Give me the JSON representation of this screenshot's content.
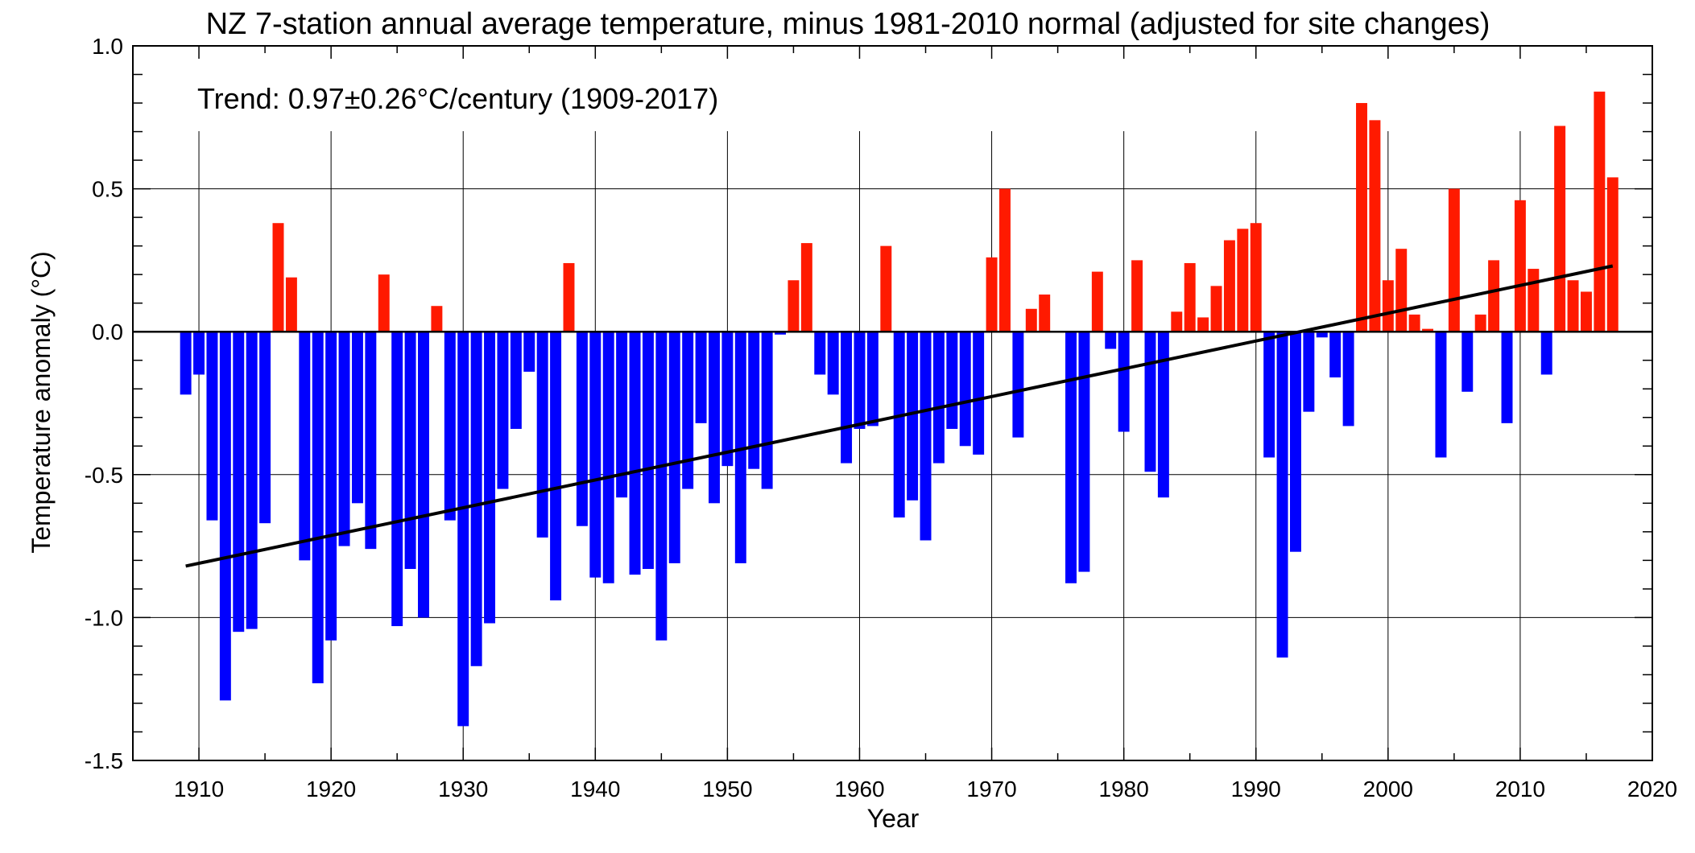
{
  "chart_data": {
    "type": "bar",
    "title": "NZ 7-station annual average temperature, minus 1981-2010 normal (adjusted for site changes)",
    "xlabel": "Year",
    "ylabel": "Temperature anomaly (°C)",
    "xlim": [
      1905,
      2020
    ],
    "ylim": [
      -1.5,
      1.0
    ],
    "x_ticks": [
      1910,
      1920,
      1930,
      1940,
      1950,
      1960,
      1970,
      1980,
      1990,
      2000,
      2010,
      2020
    ],
    "y_ticks": [
      1.0,
      0.5,
      0.0,
      -0.5,
      -1.0,
      -1.5
    ],
    "y_tick_labels": [
      "1.0",
      "0.5",
      "0.0",
      "-0.5",
      "-1.0",
      "-1.5"
    ],
    "grid": true,
    "annotation": "Trend: 0.97±0.26°C/century (1909-2017)",
    "trend": {
      "x": [
        1909,
        2017
      ],
      "y": [
        -0.82,
        0.23
      ],
      "color": "#000000"
    },
    "colors": {
      "positive": "#ff1a00",
      "negative": "#0000ff",
      "grid": "#000000"
    },
    "years": [
      1909,
      1910,
      1911,
      1912,
      1913,
      1914,
      1915,
      1916,
      1917,
      1918,
      1919,
      1920,
      1921,
      1922,
      1923,
      1924,
      1925,
      1926,
      1927,
      1928,
      1929,
      1930,
      1931,
      1932,
      1933,
      1934,
      1935,
      1936,
      1937,
      1938,
      1939,
      1940,
      1941,
      1942,
      1943,
      1944,
      1945,
      1946,
      1947,
      1948,
      1949,
      1950,
      1951,
      1952,
      1953,
      1954,
      1955,
      1956,
      1957,
      1958,
      1959,
      1960,
      1961,
      1962,
      1963,
      1964,
      1965,
      1966,
      1967,
      1968,
      1969,
      1970,
      1971,
      1972,
      1973,
      1974,
      1975,
      1976,
      1977,
      1978,
      1979,
      1980,
      1981,
      1982,
      1983,
      1984,
      1985,
      1986,
      1987,
      1988,
      1989,
      1990,
      1991,
      1992,
      1993,
      1994,
      1995,
      1996,
      1997,
      1998,
      1999,
      2000,
      2001,
      2002,
      2003,
      2004,
      2005,
      2006,
      2007,
      2008,
      2009,
      2010,
      2011,
      2012,
      2013,
      2014,
      2015,
      2016,
      2017
    ],
    "values": [
      -0.22,
      -0.15,
      -0.66,
      -1.29,
      -1.05,
      -1.04,
      -0.67,
      0.38,
      0.19,
      -0.8,
      -1.23,
      -1.08,
      -0.75,
      -0.6,
      -0.76,
      0.2,
      -1.03,
      -0.83,
      -1.0,
      0.09,
      -0.66,
      -1.38,
      -1.17,
      -1.02,
      -0.55,
      -0.34,
      -0.14,
      -0.72,
      -0.94,
      0.24,
      -0.68,
      -0.86,
      -0.88,
      -0.58,
      -0.85,
      -0.83,
      -1.08,
      -0.81,
      -0.55,
      -0.32,
      -0.6,
      -0.47,
      -0.81,
      -0.48,
      -0.55,
      -0.01,
      0.18,
      0.31,
      -0.15,
      -0.22,
      -0.46,
      -0.34,
      -0.33,
      0.3,
      -0.65,
      -0.59,
      -0.73,
      -0.46,
      -0.34,
      -0.4,
      -0.43,
      0.26,
      0.5,
      -0.37,
      0.08,
      0.13,
      0.0,
      -0.88,
      -0.84,
      0.21,
      -0.06,
      -0.35,
      0.25,
      -0.49,
      -0.58,
      0.07,
      0.24,
      0.05,
      0.16,
      0.32,
      0.36,
      0.38,
      -0.44,
      -1.14,
      -0.77,
      -0.28,
      -0.02,
      -0.16,
      -0.33,
      0.8,
      0.74,
      0.18,
      0.29,
      0.06,
      0.01,
      -0.44,
      0.5,
      -0.21,
      0.06,
      0.25,
      -0.32,
      0.46,
      0.22,
      -0.15,
      0.72,
      0.18,
      0.14,
      0.84,
      0.54
    ]
  }
}
